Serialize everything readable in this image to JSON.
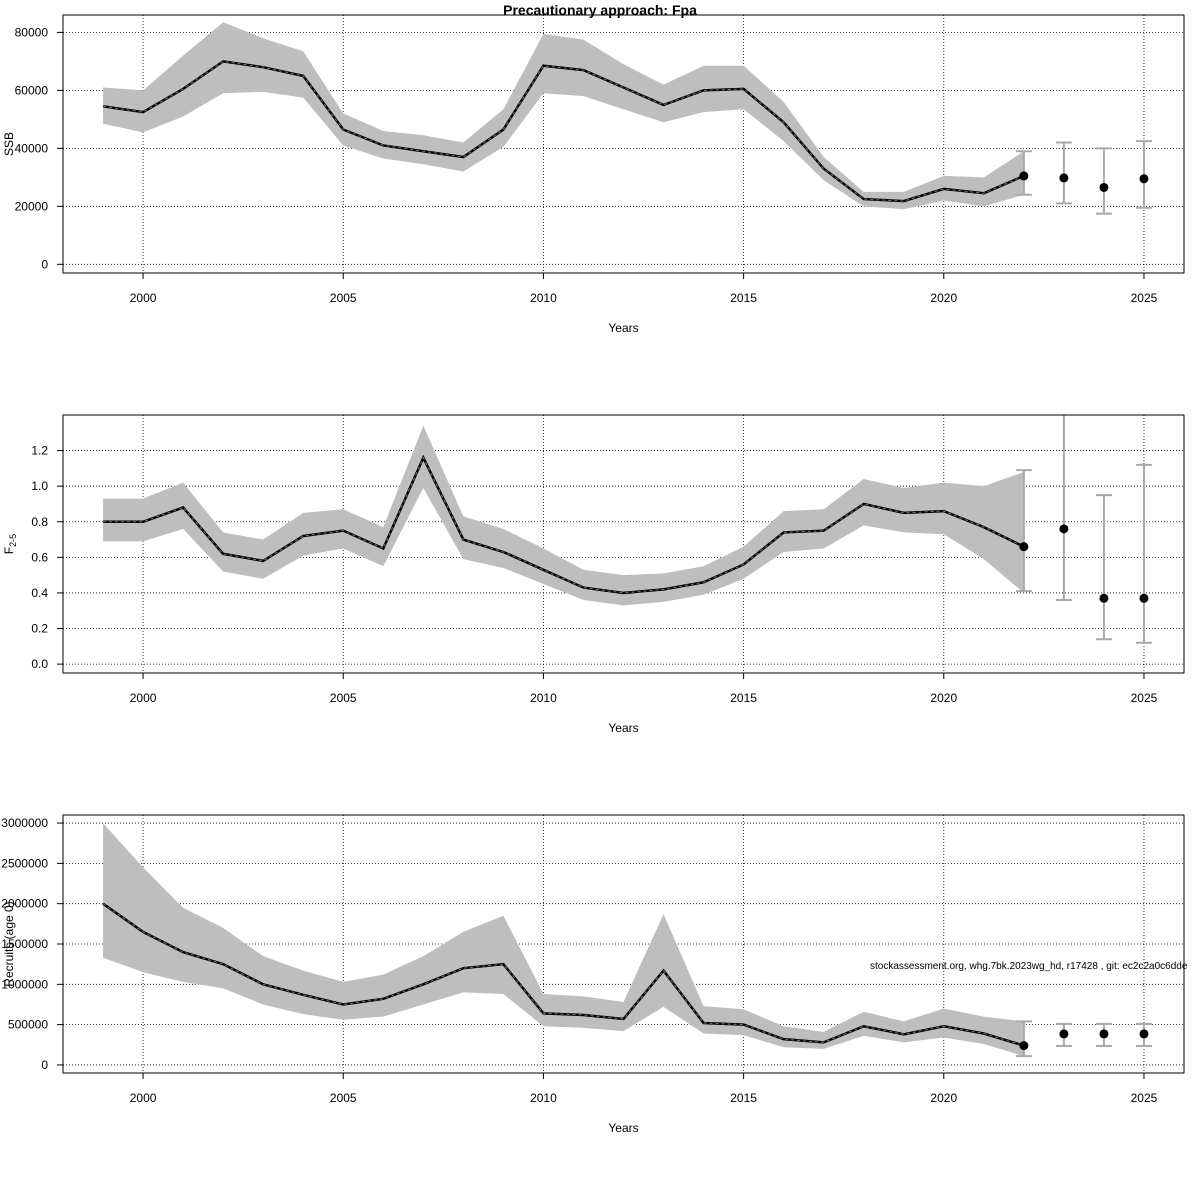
{
  "figure": {
    "title": "Precautionary approach: Fpa",
    "footnote": "stockassessment.org, whg.7bk.2023wg_hd, r17428 , git: ec2c2a0c6dde"
  },
  "style": {
    "band_color": "#bebebe",
    "line_color": "#000000",
    "errorbar_color": "#a9a9a9",
    "grid_color": "#000000"
  },
  "chart_data": [
    {
      "type": "line",
      "title": "",
      "xlabel": "Years",
      "ylabel": "SSB",
      "xlim": [
        1998,
        2026
      ],
      "ylim": [
        -3000,
        86000
      ],
      "x_ticks": [
        2000,
        2005,
        2010,
        2015,
        2020,
        2025
      ],
      "y_ticks": [
        0,
        20000,
        40000,
        60000,
        80000
      ],
      "y_tick_labels": [
        "0",
        "20000",
        "40000",
        "60000",
        "80000"
      ],
      "grid": true,
      "series": [
        {
          "kind": "estimate",
          "x": [
            1999,
            2000,
            2001,
            2002,
            2003,
            2004,
            2005,
            2006,
            2007,
            2008,
            2009,
            2010,
            2011,
            2012,
            2013,
            2014,
            2015,
            2016,
            2017,
            2018,
            2019,
            2020,
            2021,
            2022
          ],
          "y": [
            54500,
            52500,
            60500,
            70000,
            68000,
            65000,
            46500,
            41000,
            39000,
            37000,
            46500,
            68500,
            67000,
            61000,
            55000,
            60000,
            60500,
            49000,
            33000,
            22500,
            21800,
            26000,
            24500,
            30500
          ],
          "lower": [
            48500,
            45500,
            51000,
            59000,
            59500,
            57500,
            41000,
            36500,
            34500,
            32000,
            40500,
            59000,
            58000,
            53500,
            49000,
            52500,
            53500,
            42500,
            29000,
            20000,
            19000,
            22000,
            20000,
            24000
          ],
          "upper": [
            61000,
            60000,
            72000,
            83500,
            78000,
            73500,
            52000,
            46000,
            44500,
            42000,
            53500,
            79500,
            77500,
            69000,
            62000,
            68500,
            68500,
            56000,
            37000,
            25000,
            25000,
            30500,
            30000,
            39000
          ]
        },
        {
          "kind": "forecast",
          "x": [
            2022,
            2023,
            2024,
            2025
          ],
          "y": [
            30500,
            29800,
            26500,
            29500
          ],
          "lower": [
            24000,
            21000,
            17500,
            19500
          ],
          "upper": [
            39000,
            42000,
            40000,
            42500
          ]
        }
      ]
    },
    {
      "type": "line",
      "title": "",
      "xlabel": "Years",
      "ylabel": "F",
      "ylabel_sub": "2-5",
      "xlim": [
        1998,
        2026
      ],
      "ylim": [
        -0.05,
        1.4
      ],
      "x_ticks": [
        2000,
        2005,
        2010,
        2015,
        2020,
        2025
      ],
      "y_ticks": [
        0.0,
        0.2,
        0.4,
        0.6,
        0.8,
        1.0,
        1.2
      ],
      "y_tick_labels": [
        "0.0",
        "0.2",
        "0.4",
        "0.6",
        "0.8",
        "1.0",
        "1.2"
      ],
      "grid": true,
      "series": [
        {
          "kind": "estimate",
          "x": [
            1999,
            2000,
            2001,
            2002,
            2003,
            2004,
            2005,
            2006,
            2007,
            2008,
            2009,
            2010,
            2011,
            2012,
            2013,
            2014,
            2015,
            2016,
            2017,
            2018,
            2019,
            2020,
            2021,
            2022
          ],
          "y": [
            0.8,
            0.8,
            0.88,
            0.62,
            0.58,
            0.72,
            0.75,
            0.65,
            1.16,
            0.7,
            0.63,
            0.53,
            0.43,
            0.4,
            0.42,
            0.46,
            0.56,
            0.74,
            0.75,
            0.9,
            0.85,
            0.86,
            0.77,
            0.66
          ],
          "lower": [
            0.69,
            0.69,
            0.76,
            0.52,
            0.48,
            0.61,
            0.65,
            0.55,
            0.99,
            0.59,
            0.54,
            0.45,
            0.36,
            0.33,
            0.35,
            0.39,
            0.48,
            0.63,
            0.65,
            0.78,
            0.74,
            0.73,
            0.59,
            0.4
          ],
          "upper": [
            0.93,
            0.93,
            1.02,
            0.74,
            0.7,
            0.85,
            0.87,
            0.77,
            1.34,
            0.83,
            0.76,
            0.65,
            0.53,
            0.5,
            0.51,
            0.55,
            0.66,
            0.86,
            0.87,
            1.04,
            0.99,
            1.02,
            1.0,
            1.08
          ]
        },
        {
          "kind": "forecast",
          "x": [
            2022,
            2023,
            2024,
            2025
          ],
          "y": [
            0.66,
            0.76,
            0.37,
            0.37
          ],
          "lower": [
            0.41,
            0.36,
            0.14,
            0.12
          ],
          "upper": [
            1.09,
            1.45,
            0.95,
            1.12
          ]
        }
      ]
    },
    {
      "type": "line",
      "title": "",
      "xlabel": "Years",
      "ylabel": "Recruits (age 0)",
      "xlim": [
        1998,
        2026
      ],
      "ylim": [
        -100000,
        3100000
      ],
      "x_ticks": [
        2000,
        2005,
        2010,
        2015,
        2020,
        2025
      ],
      "y_ticks": [
        0,
        500000,
        1000000,
        1500000,
        2000000,
        2500000,
        3000000
      ],
      "y_tick_labels": [
        "0",
        "500000",
        "1000000",
        "1500000",
        "2000000",
        "2500000",
        "3000000"
      ],
      "grid": true,
      "series": [
        {
          "kind": "estimate",
          "x": [
            1999,
            2000,
            2001,
            2002,
            2003,
            2004,
            2005,
            2006,
            2007,
            2008,
            2009,
            2010,
            2011,
            2012,
            2013,
            2014,
            2015,
            2016,
            2017,
            2018,
            2019,
            2020,
            2021,
            2022
          ],
          "y": [
            2000000,
            1650000,
            1400000,
            1250000,
            1000000,
            870000,
            750000,
            820000,
            1000000,
            1200000,
            1250000,
            640000,
            620000,
            570000,
            1170000,
            520000,
            500000,
            320000,
            280000,
            480000,
            380000,
            480000,
            390000,
            240000
          ],
          "lower": [
            1330000,
            1150000,
            1030000,
            950000,
            750000,
            630000,
            560000,
            600000,
            750000,
            900000,
            880000,
            480000,
            460000,
            420000,
            720000,
            390000,
            370000,
            220000,
            200000,
            360000,
            280000,
            340000,
            260000,
            110000
          ],
          "upper": [
            3000000,
            2450000,
            1950000,
            1700000,
            1350000,
            1170000,
            1030000,
            1120000,
            1350000,
            1650000,
            1850000,
            880000,
            850000,
            780000,
            1870000,
            730000,
            690000,
            480000,
            410000,
            660000,
            540000,
            700000,
            600000,
            540000
          ]
        },
        {
          "kind": "forecast",
          "x": [
            2022,
            2023,
            2024,
            2025
          ],
          "y": [
            240000,
            385000,
            385000,
            385000
          ],
          "lower": [
            110000,
            235000,
            235000,
            235000
          ],
          "upper": [
            540000,
            510000,
            510000,
            510000
          ]
        }
      ]
    }
  ]
}
